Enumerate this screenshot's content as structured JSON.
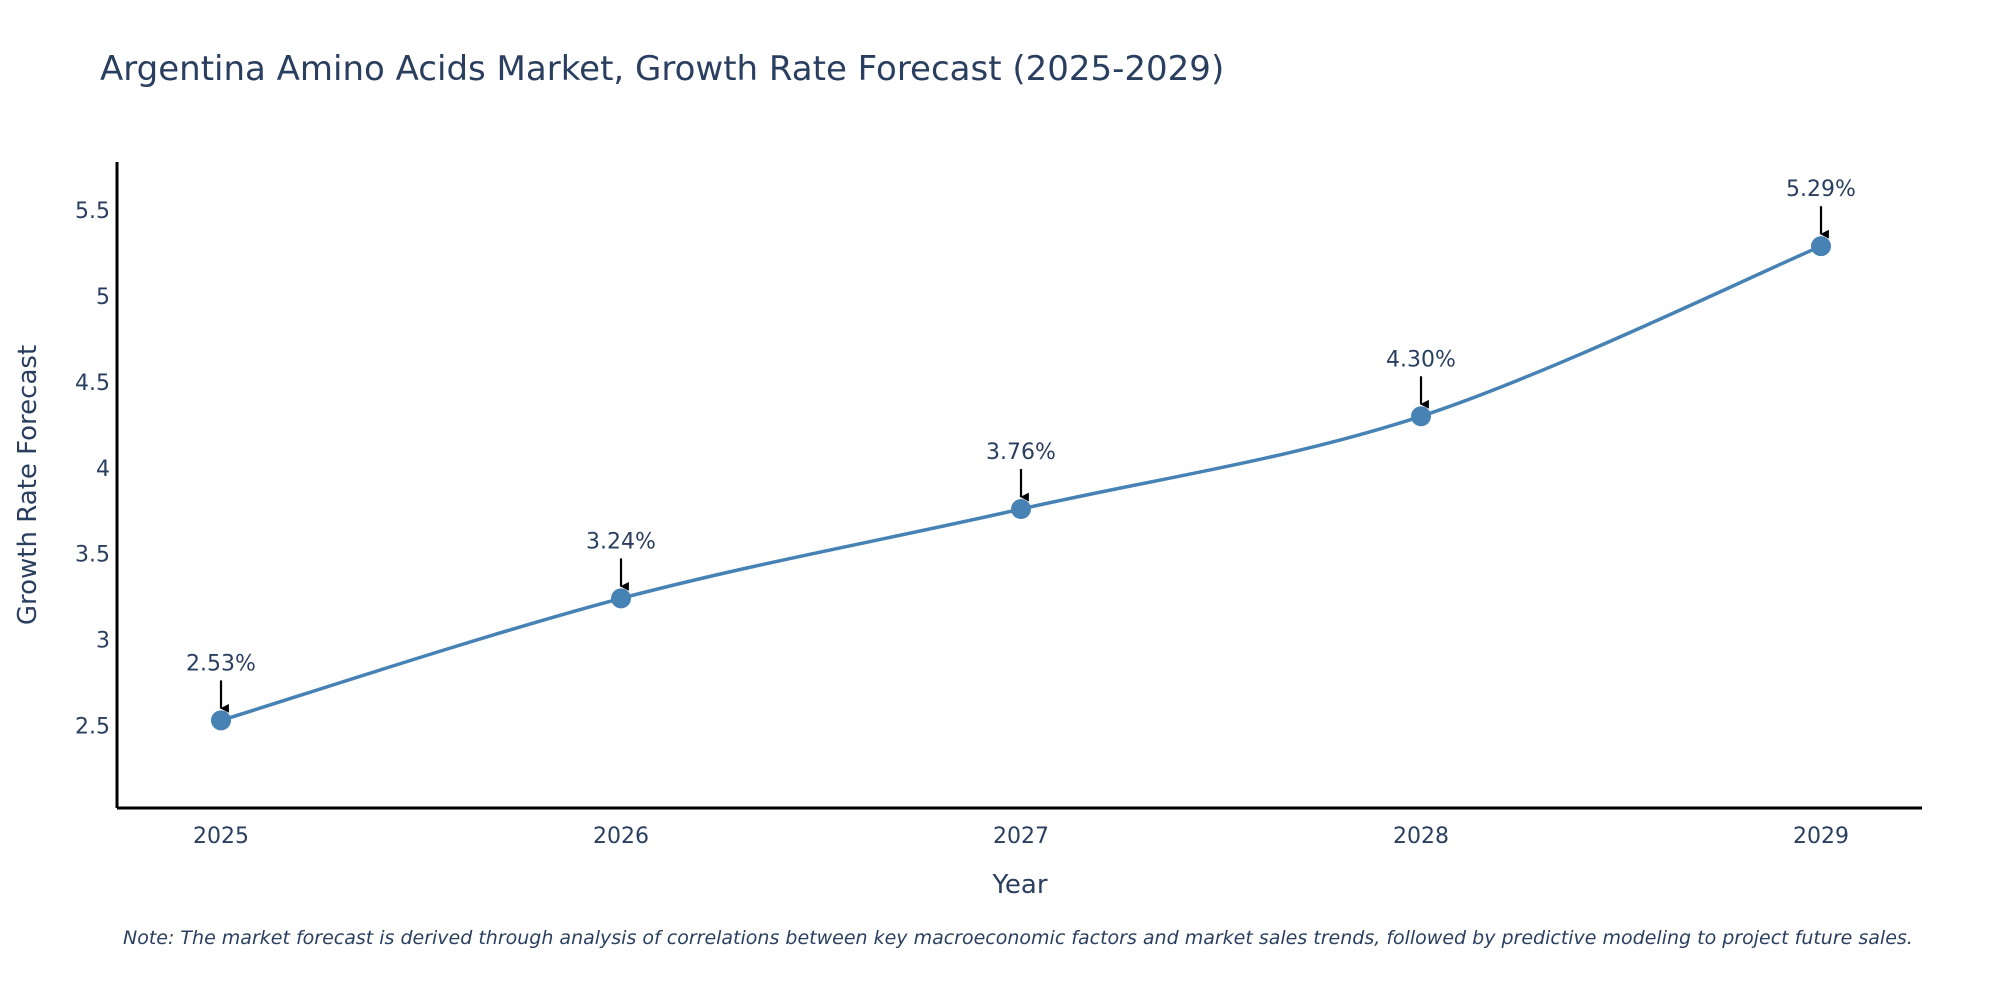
{
  "chart_data": {
    "type": "line",
    "title": "Argentina Amino Acids Market, Growth Rate Forecast (2025-2029)",
    "xlabel": "Year",
    "ylabel": "Growth Rate Forecast",
    "categories": [
      "2025",
      "2026",
      "2027",
      "2028",
      "2029"
    ],
    "values": [
      2.53,
      3.24,
      3.76,
      4.3,
      5.29
    ],
    "data_labels": [
      "2.53%",
      "3.24%",
      "3.76%",
      "4.30%",
      "5.29%"
    ],
    "yticks": [
      2.5,
      3,
      3.5,
      4,
      4.5,
      5,
      5.5
    ],
    "ytick_labels": [
      "2.5",
      "3",
      "3.5",
      "4",
      "4.5",
      "5",
      "5.5"
    ],
    "ylim": [
      2.02,
      5.78
    ],
    "grid": false,
    "legend": "none",
    "line_color": "#4682b4",
    "marker_color": "#4682b4",
    "arrow_color": "#000000",
    "note": "Note: The market forecast is derived through analysis of correlations between key macroeconomic factors and market sales trends, followed by predictive modeling to project future sales."
  }
}
